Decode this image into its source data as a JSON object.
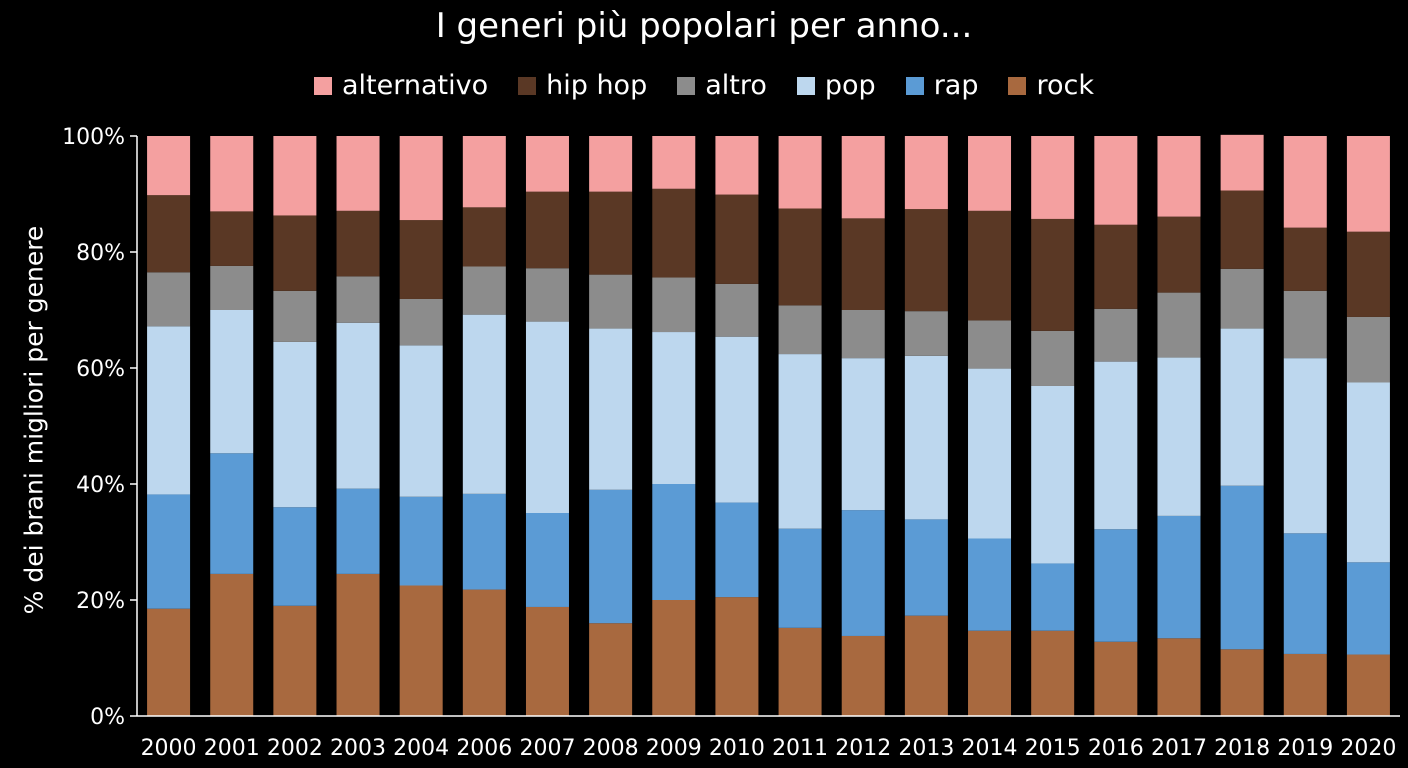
{
  "chart_data": {
    "type": "bar",
    "stacked": true,
    "title": "I generi più popolari per anno...",
    "ylabel": "% dei brani migliori per genere",
    "xlabel": "",
    "ylim": [
      0,
      100
    ],
    "yticks": [
      "0%",
      "20%",
      "40%",
      "60%",
      "80%",
      "100%"
    ],
    "legend_position": "top",
    "categories": [
      "2000",
      "2001",
      "2002",
      "2003",
      "2004",
      "2006",
      "2007",
      "2008",
      "2009",
      "2010",
      "2011",
      "2012",
      "2013",
      "2014",
      "2015",
      "2016",
      "2017",
      "2018",
      "2019",
      "2020"
    ],
    "series": [
      {
        "name": "rock",
        "color": "#a8693f",
        "values": [
          18.5,
          24.5,
          19,
          24.5,
          22.5,
          21.8,
          18.8,
          16,
          20,
          20.5,
          15.2,
          13.8,
          17.3,
          14.7,
          14.7,
          12.8,
          13.4,
          11.5,
          10.7,
          10.6
        ]
      },
      {
        "name": "rap",
        "color": "#5b9bd5",
        "values": [
          19.7,
          20.8,
          17,
          14.7,
          15.3,
          16.5,
          16.2,
          23,
          20,
          16.3,
          17.1,
          21.7,
          16.6,
          15.9,
          11.6,
          19.4,
          21.1,
          28.2,
          20.8,
          15.9
        ]
      },
      {
        "name": "pop",
        "color": "#bdd7ee",
        "values": [
          29,
          24.7,
          28.5,
          28.6,
          26.1,
          30.9,
          33,
          27.8,
          26.2,
          28.6,
          30.1,
          26.2,
          28.2,
          29.3,
          30.6,
          28.9,
          27.3,
          27.1,
          30.2,
          31
        ]
      },
      {
        "name": "altro",
        "color": "#8c8c8c",
        "values": [
          9.3,
          7.6,
          8.8,
          8,
          8,
          8.3,
          9.2,
          9.3,
          9.4,
          9.1,
          8.4,
          8.3,
          7.7,
          8.3,
          9.5,
          9.1,
          11.2,
          10.3,
          11.6,
          11.3
        ]
      },
      {
        "name": "hip hop",
        "color": "#5a3825",
        "values": [
          13.3,
          9.4,
          13,
          11.3,
          13.6,
          10.2,
          13.2,
          14.3,
          15.3,
          15.4,
          16.7,
          15.8,
          17.6,
          18.9,
          19.3,
          14.5,
          13.1,
          13.5,
          10.9,
          14.7
        ]
      },
      {
        "name": "alternativo",
        "color": "#f4a0a0",
        "values": [
          10.2,
          13,
          13.7,
          12.9,
          14.5,
          12.3,
          9.6,
          9.6,
          9.1,
          10.1,
          12.5,
          14.2,
          12.6,
          12.9,
          14.3,
          15.3,
          13.9,
          9.6,
          15.8,
          16.5
        ]
      }
    ],
    "legend_order": [
      "alternativo",
      "hip hop",
      "altro",
      "pop",
      "rap",
      "rock"
    ]
  }
}
